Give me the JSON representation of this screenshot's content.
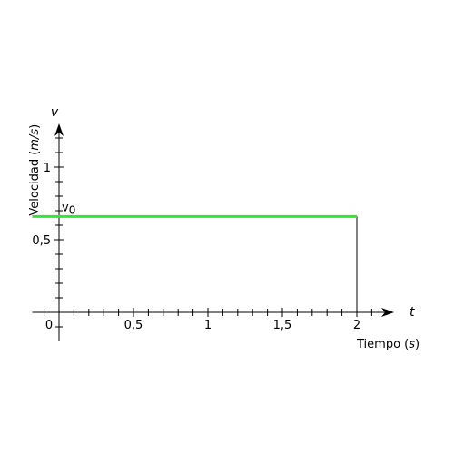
{
  "chart_data": {
    "type": "line",
    "xlabel": "Tiempo",
    "xlabel_unit": "s",
    "ylabel": "Velocidad",
    "ylabel_unit": "m/s",
    "x_axis_symbol": "t",
    "y_axis_symbol": "v",
    "xlim": [
      -0.18,
      2.25
    ],
    "ylim": [
      -0.05,
      1.3
    ],
    "x_ticks": [
      {
        "value": 0,
        "label": "0"
      },
      {
        "value": 0.5,
        "label": "0,5"
      },
      {
        "value": 1,
        "label": "1"
      },
      {
        "value": 1.5,
        "label": "1,5"
      },
      {
        "value": 2,
        "label": "2"
      }
    ],
    "y_ticks": [
      {
        "value": 0.5,
        "label": "0,5"
      },
      {
        "value": 1,
        "label": "1"
      }
    ],
    "x_minor_step": 0.1,
    "y_minor_step": 0.1,
    "grid": false,
    "series": [
      {
        "x": [
          -0.18,
          2
        ],
        "y": [
          0.66,
          0.66
        ],
        "color": "#33e633"
      }
    ],
    "annotations": [
      {
        "text": "v0",
        "x": 0,
        "y": 0.66
      }
    ],
    "drop_line": {
      "x": 2,
      "y_from": 0,
      "y_to": 0.66
    }
  }
}
